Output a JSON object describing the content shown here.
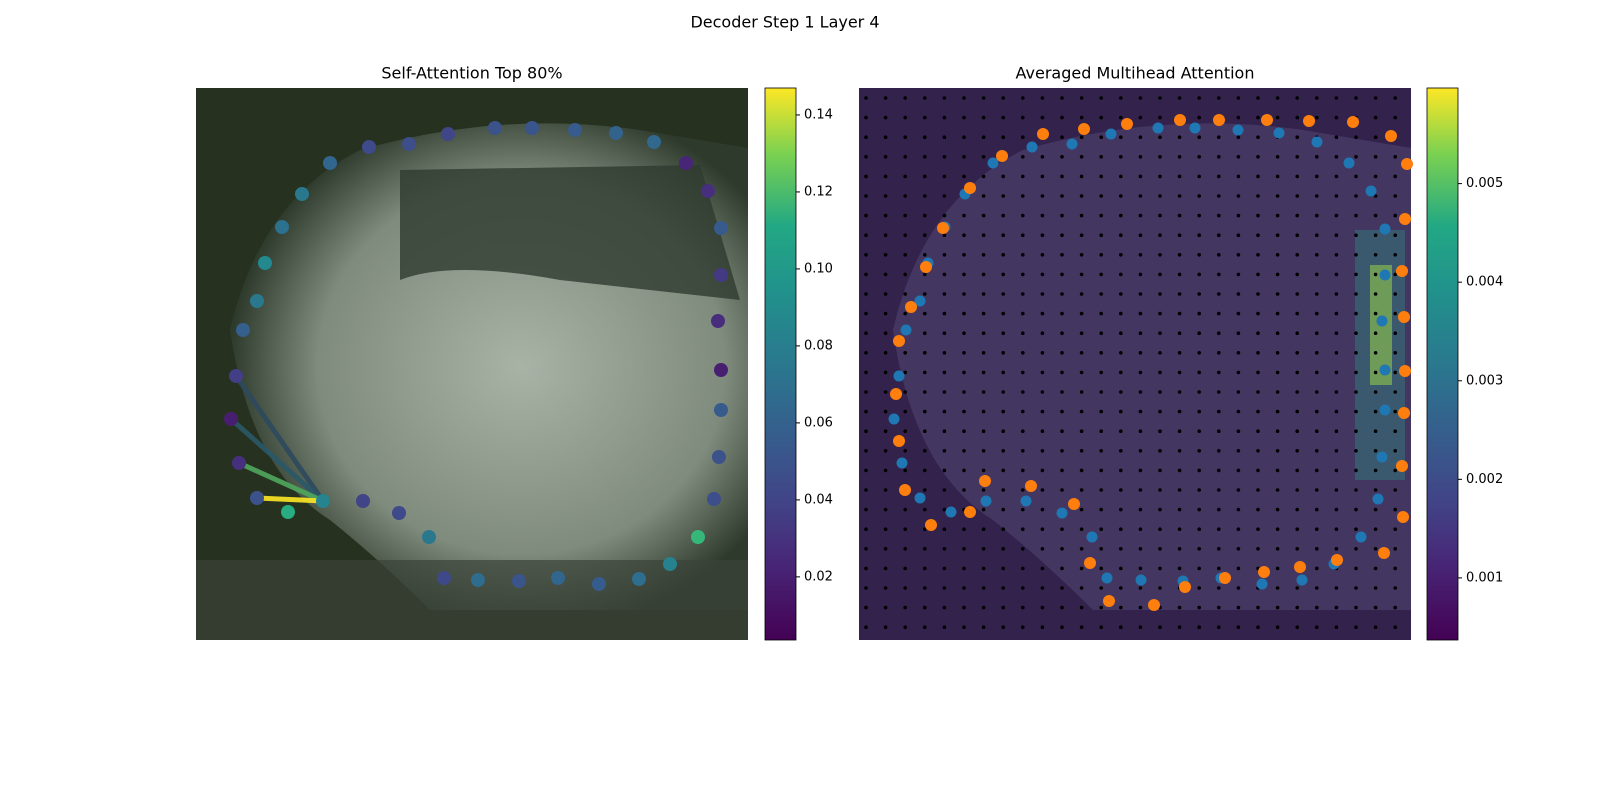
{
  "title": "Decoder Step 1 Layer 4",
  "chart_data": [
    {
      "type": "image",
      "title": "Self-Attention Top 80%",
      "colormap": "viridis",
      "ylim": [
        0.0036,
        0.147
      ],
      "yticks": [
        0.02,
        0.04,
        0.06,
        0.08,
        {
          "value": 0.1,
          "label": "0.10"
        },
        0.12,
        0.14
      ]
    },
    {
      "type": "image",
      "title": "Averaged Multihead Attention",
      "colormap": "viridis",
      "ylim": [
        0.00037,
        0.00597
      ],
      "yticks": [
        0.001,
        0.002,
        0.003,
        0.004,
        0.005
      ]
    }
  ]
}
